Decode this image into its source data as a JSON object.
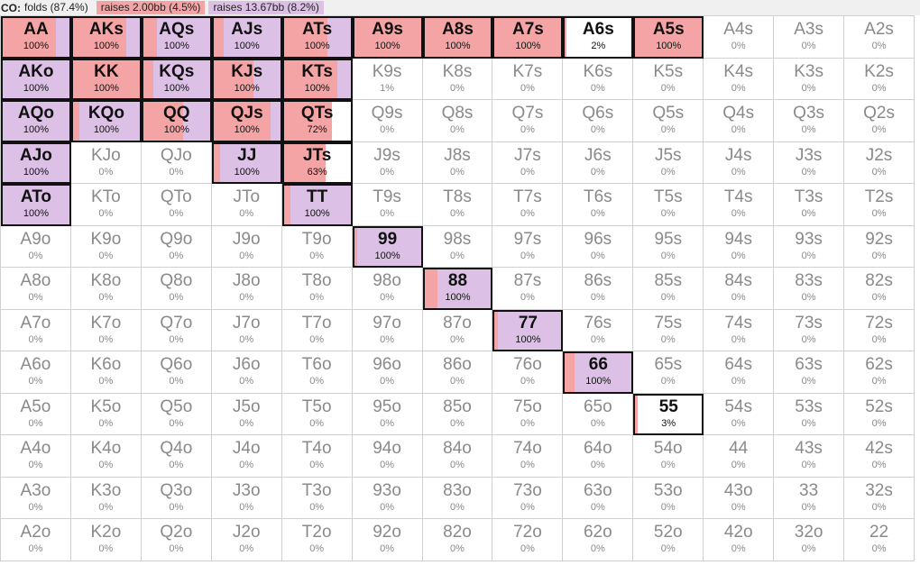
{
  "legend": {
    "position": "CO:",
    "folds": "folds (87.4%)",
    "raise_small": "raises 2.00bb (4.5%)",
    "raise_big": "raises 13.67bb (8.2%)"
  },
  "colors": {
    "raise_small": "#f4a4a4",
    "raise_big": "#dcc0e6",
    "fold": "#ffffff"
  },
  "hands": [
    {
      "hand": "AA",
      "pct": "100%",
      "s": 0.8,
      "b": 0.2,
      "a": true
    },
    {
      "hand": "AKs",
      "pct": "100%",
      "s": 0.8,
      "b": 0.2,
      "a": true
    },
    {
      "hand": "AQs",
      "pct": "100%",
      "s": 0.2,
      "b": 0.8,
      "a": true
    },
    {
      "hand": "AJs",
      "pct": "100%",
      "s": 0.15,
      "b": 0.85,
      "a": true
    },
    {
      "hand": "ATs",
      "pct": "100%",
      "s": 0.65,
      "b": 0.35,
      "a": true
    },
    {
      "hand": "A9s",
      "pct": "100%",
      "s": 1,
      "b": 0,
      "a": true
    },
    {
      "hand": "A8s",
      "pct": "100%",
      "s": 1,
      "b": 0,
      "a": true
    },
    {
      "hand": "A7s",
      "pct": "100%",
      "s": 1,
      "b": 0,
      "a": true
    },
    {
      "hand": "A6s",
      "pct": "2%",
      "s": 0.02,
      "b": 0,
      "a": true
    },
    {
      "hand": "A5s",
      "pct": "100%",
      "s": 1,
      "b": 0,
      "a": true
    },
    {
      "hand": "A4s",
      "pct": "0%"
    },
    {
      "hand": "A3s",
      "pct": "0%"
    },
    {
      "hand": "A2s",
      "pct": "0%"
    },
    {
      "hand": "AKo",
      "pct": "100%",
      "s": 0,
      "b": 1,
      "a": true
    },
    {
      "hand": "KK",
      "pct": "100%",
      "s": 1,
      "b": 0,
      "a": true
    },
    {
      "hand": "KQs",
      "pct": "100%",
      "s": 0.15,
      "b": 0.85,
      "a": true
    },
    {
      "hand": "KJs",
      "pct": "100%",
      "s": 0.6,
      "b": 0.4,
      "a": true
    },
    {
      "hand": "KTs",
      "pct": "100%",
      "s": 0.8,
      "b": 0.2,
      "a": true
    },
    {
      "hand": "K9s",
      "pct": "1%"
    },
    {
      "hand": "K8s",
      "pct": "0%"
    },
    {
      "hand": "K7s",
      "pct": "0%"
    },
    {
      "hand": "K6s",
      "pct": "0%"
    },
    {
      "hand": "K5s",
      "pct": "0%"
    },
    {
      "hand": "K4s",
      "pct": "0%"
    },
    {
      "hand": "K3s",
      "pct": "0%"
    },
    {
      "hand": "K2s",
      "pct": "0%"
    },
    {
      "hand": "AQo",
      "pct": "100%",
      "s": 0,
      "b": 1,
      "a": true
    },
    {
      "hand": "KQo",
      "pct": "100%",
      "s": 0.1,
      "b": 0.9,
      "a": true
    },
    {
      "hand": "QQ",
      "pct": "100%",
      "s": 0.6,
      "b": 0.4,
      "a": true
    },
    {
      "hand": "QJs",
      "pct": "100%",
      "s": 0.85,
      "b": 0.15,
      "a": true
    },
    {
      "hand": "QTs",
      "pct": "72%",
      "s": 0.72,
      "b": 0,
      "a": true
    },
    {
      "hand": "Q9s",
      "pct": "0%"
    },
    {
      "hand": "Q8s",
      "pct": "0%"
    },
    {
      "hand": "Q7s",
      "pct": "0%"
    },
    {
      "hand": "Q6s",
      "pct": "0%"
    },
    {
      "hand": "Q5s",
      "pct": "0%"
    },
    {
      "hand": "Q4s",
      "pct": "0%"
    },
    {
      "hand": "Q3s",
      "pct": "0%"
    },
    {
      "hand": "Q2s",
      "pct": "0%"
    },
    {
      "hand": "AJo",
      "pct": "100%",
      "s": 0,
      "b": 1,
      "a": true
    },
    {
      "hand": "KJo",
      "pct": "0%"
    },
    {
      "hand": "QJo",
      "pct": "0%"
    },
    {
      "hand": "JJ",
      "pct": "100%",
      "s": 0.1,
      "b": 0.9,
      "a": true
    },
    {
      "hand": "JTs",
      "pct": "63%",
      "s": 0.63,
      "b": 0,
      "a": true
    },
    {
      "hand": "J9s",
      "pct": "0%"
    },
    {
      "hand": "J8s",
      "pct": "0%"
    },
    {
      "hand": "J7s",
      "pct": "0%"
    },
    {
      "hand": "J6s",
      "pct": "0%"
    },
    {
      "hand": "J5s",
      "pct": "0%"
    },
    {
      "hand": "J4s",
      "pct": "0%"
    },
    {
      "hand": "J3s",
      "pct": "0%"
    },
    {
      "hand": "J2s",
      "pct": "0%"
    },
    {
      "hand": "ATo",
      "pct": "100%",
      "s": 0,
      "b": 1,
      "a": true
    },
    {
      "hand": "KTo",
      "pct": "0%"
    },
    {
      "hand": "QTo",
      "pct": "0%"
    },
    {
      "hand": "JTo",
      "pct": "0%"
    },
    {
      "hand": "TT",
      "pct": "100%",
      "s": 0.1,
      "b": 0.9,
      "a": true
    },
    {
      "hand": "T9s",
      "pct": "0%"
    },
    {
      "hand": "T8s",
      "pct": "0%"
    },
    {
      "hand": "T7s",
      "pct": "0%"
    },
    {
      "hand": "T6s",
      "pct": "0%"
    },
    {
      "hand": "T5s",
      "pct": "0%"
    },
    {
      "hand": "T4s",
      "pct": "0%"
    },
    {
      "hand": "T3s",
      "pct": "0%"
    },
    {
      "hand": "T2s",
      "pct": "0%"
    },
    {
      "hand": "A9o",
      "pct": "0%"
    },
    {
      "hand": "K9o",
      "pct": "0%"
    },
    {
      "hand": "Q9o",
      "pct": "0%"
    },
    {
      "hand": "J9o",
      "pct": "0%"
    },
    {
      "hand": "T9o",
      "pct": "0%"
    },
    {
      "hand": "99",
      "pct": "100%",
      "s": 0.05,
      "b": 0.95,
      "a": true
    },
    {
      "hand": "98s",
      "pct": "0%"
    },
    {
      "hand": "97s",
      "pct": "0%"
    },
    {
      "hand": "96s",
      "pct": "0%"
    },
    {
      "hand": "95s",
      "pct": "0%"
    },
    {
      "hand": "94s",
      "pct": "0%"
    },
    {
      "hand": "93s",
      "pct": "0%"
    },
    {
      "hand": "92s",
      "pct": "0%"
    },
    {
      "hand": "A8o",
      "pct": "0%"
    },
    {
      "hand": "K8o",
      "pct": "0%"
    },
    {
      "hand": "Q8o",
      "pct": "0%"
    },
    {
      "hand": "J8o",
      "pct": "0%"
    },
    {
      "hand": "T8o",
      "pct": "0%"
    },
    {
      "hand": "98o",
      "pct": "0%"
    },
    {
      "hand": "88",
      "pct": "100%",
      "s": 0.2,
      "b": 0.8,
      "a": true
    },
    {
      "hand": "87s",
      "pct": "0%"
    },
    {
      "hand": "86s",
      "pct": "0%"
    },
    {
      "hand": "85s",
      "pct": "0%"
    },
    {
      "hand": "84s",
      "pct": "0%"
    },
    {
      "hand": "83s",
      "pct": "0%"
    },
    {
      "hand": "82s",
      "pct": "0%"
    },
    {
      "hand": "A7o",
      "pct": "0%"
    },
    {
      "hand": "K7o",
      "pct": "0%"
    },
    {
      "hand": "Q7o",
      "pct": "0%"
    },
    {
      "hand": "J7o",
      "pct": "0%"
    },
    {
      "hand": "T7o",
      "pct": "0%"
    },
    {
      "hand": "97o",
      "pct": "0%"
    },
    {
      "hand": "87o",
      "pct": "0%"
    },
    {
      "hand": "77",
      "pct": "100%",
      "s": 0.05,
      "b": 0.95,
      "a": true
    },
    {
      "hand": "76s",
      "pct": "0%"
    },
    {
      "hand": "75s",
      "pct": "0%"
    },
    {
      "hand": "74s",
      "pct": "0%"
    },
    {
      "hand": "73s",
      "pct": "0%"
    },
    {
      "hand": "72s",
      "pct": "0%"
    },
    {
      "hand": "A6o",
      "pct": "0%"
    },
    {
      "hand": "K6o",
      "pct": "0%"
    },
    {
      "hand": "Q6o",
      "pct": "0%"
    },
    {
      "hand": "J6o",
      "pct": "0%"
    },
    {
      "hand": "T6o",
      "pct": "0%"
    },
    {
      "hand": "96o",
      "pct": "0%"
    },
    {
      "hand": "86o",
      "pct": "0%"
    },
    {
      "hand": "76o",
      "pct": "0%"
    },
    {
      "hand": "66",
      "pct": "100%",
      "s": 0.15,
      "b": 0.85,
      "a": true
    },
    {
      "hand": "65s",
      "pct": "0%"
    },
    {
      "hand": "64s",
      "pct": "0%"
    },
    {
      "hand": "63s",
      "pct": "0%"
    },
    {
      "hand": "62s",
      "pct": "0%"
    },
    {
      "hand": "A5o",
      "pct": "0%"
    },
    {
      "hand": "K5o",
      "pct": "0%"
    },
    {
      "hand": "Q5o",
      "pct": "0%"
    },
    {
      "hand": "J5o",
      "pct": "0%"
    },
    {
      "hand": "T5o",
      "pct": "0%"
    },
    {
      "hand": "95o",
      "pct": "0%"
    },
    {
      "hand": "85o",
      "pct": "0%"
    },
    {
      "hand": "75o",
      "pct": "0%"
    },
    {
      "hand": "65o",
      "pct": "0%"
    },
    {
      "hand": "55",
      "pct": "3%",
      "s": 0.03,
      "b": 0,
      "a": true
    },
    {
      "hand": "54s",
      "pct": "0%"
    },
    {
      "hand": "53s",
      "pct": "0%"
    },
    {
      "hand": "52s",
      "pct": "0%"
    },
    {
      "hand": "A4o",
      "pct": "0%"
    },
    {
      "hand": "K4o",
      "pct": "0%"
    },
    {
      "hand": "Q4o",
      "pct": "0%"
    },
    {
      "hand": "J4o",
      "pct": "0%"
    },
    {
      "hand": "T4o",
      "pct": "0%"
    },
    {
      "hand": "94o",
      "pct": "0%"
    },
    {
      "hand": "84o",
      "pct": "0%"
    },
    {
      "hand": "74o",
      "pct": "0%"
    },
    {
      "hand": "64o",
      "pct": "0%"
    },
    {
      "hand": "54o",
      "pct": "0%"
    },
    {
      "hand": "44",
      "pct": "0%"
    },
    {
      "hand": "43s",
      "pct": "0%"
    },
    {
      "hand": "42s",
      "pct": "0%"
    },
    {
      "hand": "A3o",
      "pct": "0%"
    },
    {
      "hand": "K3o",
      "pct": "0%"
    },
    {
      "hand": "Q3o",
      "pct": "0%"
    },
    {
      "hand": "J3o",
      "pct": "0%"
    },
    {
      "hand": "T3o",
      "pct": "0%"
    },
    {
      "hand": "93o",
      "pct": "0%"
    },
    {
      "hand": "83o",
      "pct": "0%"
    },
    {
      "hand": "73o",
      "pct": "0%"
    },
    {
      "hand": "63o",
      "pct": "0%"
    },
    {
      "hand": "53o",
      "pct": "0%"
    },
    {
      "hand": "43o",
      "pct": "0%"
    },
    {
      "hand": "33",
      "pct": "0%"
    },
    {
      "hand": "32s",
      "pct": "0%"
    },
    {
      "hand": "A2o",
      "pct": "0%"
    },
    {
      "hand": "K2o",
      "pct": "0%"
    },
    {
      "hand": "Q2o",
      "pct": "0%"
    },
    {
      "hand": "J2o",
      "pct": "0%"
    },
    {
      "hand": "T2o",
      "pct": "0%"
    },
    {
      "hand": "92o",
      "pct": "0%"
    },
    {
      "hand": "82o",
      "pct": "0%"
    },
    {
      "hand": "72o",
      "pct": "0%"
    },
    {
      "hand": "62o",
      "pct": "0%"
    },
    {
      "hand": "52o",
      "pct": "0%"
    },
    {
      "hand": "42o",
      "pct": "0%"
    },
    {
      "hand": "32o",
      "pct": "0%"
    },
    {
      "hand": "22",
      "pct": "0%"
    }
  ]
}
